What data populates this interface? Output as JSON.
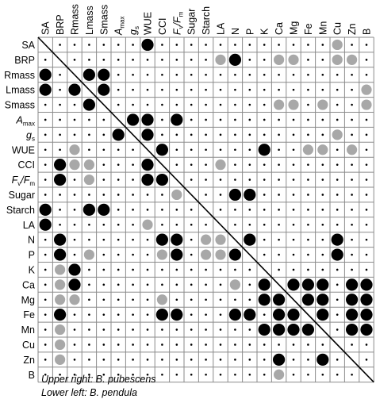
{
  "chart_data": {
    "type": "heatmap",
    "variables": [
      "SA",
      "BRP",
      "Rmass",
      "Lmass",
      "Smass",
      "Amax",
      "gs",
      "WUE",
      "CCI",
      "Fv/Fm",
      "Sugar",
      "Starch",
      "LA",
      "N",
      "P",
      "K",
      "Ca",
      "Mg",
      "Fe",
      "Mn",
      "Cu",
      "Zn",
      "B"
    ],
    "column_labels": [
      {
        "main": "SA",
        "sub": ""
      },
      {
        "main": "BRP",
        "sub": ""
      },
      {
        "main": "Rmass",
        "sub": ""
      },
      {
        "main": "Lmass",
        "sub": ""
      },
      {
        "main": "Smass",
        "sub": ""
      },
      {
        "main": "A",
        "sub": "max"
      },
      {
        "main": "g",
        "sub": "s"
      },
      {
        "main": "WUE",
        "sub": ""
      },
      {
        "main": "CCI",
        "sub": ""
      },
      {
        "main": "F",
        "sub": "v",
        "tail": "/F",
        "tailsub": "m"
      },
      {
        "main": "Sugar",
        "sub": ""
      },
      {
        "main": "Starch",
        "sub": ""
      },
      {
        "main": "LA",
        "sub": ""
      },
      {
        "main": "N",
        "sub": ""
      },
      {
        "main": "P",
        "sub": ""
      },
      {
        "main": "K",
        "sub": ""
      },
      {
        "main": "Ca",
        "sub": ""
      },
      {
        "main": "Mg",
        "sub": ""
      },
      {
        "main": "Fe",
        "sub": ""
      },
      {
        "main": "Mn",
        "sub": ""
      },
      {
        "main": "Cu",
        "sub": ""
      },
      {
        "main": "Zn",
        "sub": ""
      },
      {
        "main": "B",
        "sub": ""
      }
    ],
    "row_labels": [
      {
        "main": "SA",
        "sub": ""
      },
      {
        "main": "BRP",
        "sub": ""
      },
      {
        "main": "Rmass",
        "sub": ""
      },
      {
        "main": "Lmass",
        "sub": ""
      },
      {
        "main": "Smass",
        "sub": ""
      },
      {
        "main": "A",
        "sub": "max",
        "italic": true
      },
      {
        "main": "g",
        "sub": "s",
        "italic": true
      },
      {
        "main": "WUE",
        "sub": ""
      },
      {
        "main": "CCI",
        "sub": ""
      },
      {
        "main": "F",
        "sub": "v",
        "tail": "/F",
        "tailsub": "m",
        "italic": true
      },
      {
        "main": "Sugar",
        "sub": ""
      },
      {
        "main": "Starch",
        "sub": ""
      },
      {
        "main": "LA",
        "sub": ""
      },
      {
        "main": "N",
        "sub": ""
      },
      {
        "main": "P",
        "sub": ""
      },
      {
        "main": "K",
        "sub": ""
      },
      {
        "main": "Ca",
        "sub": ""
      },
      {
        "main": "Mg",
        "sub": ""
      },
      {
        "main": "Fe",
        "sub": ""
      },
      {
        "main": "Mn",
        "sub": ""
      },
      {
        "main": "Cu",
        "sub": ""
      },
      {
        "main": "Zn",
        "sub": ""
      },
      {
        "main": "B",
        "sub": ""
      }
    ],
    "encoding": {
      "0": "small dot",
      "1": "gray circle",
      "2": "black circle"
    },
    "colors": {
      "dot": "#000000",
      "gray": "#a8a8a8",
      "black": "#000000",
      "grid": "#8a8a8a"
    },
    "cells": [
      [
        0,
        0,
        0,
        0,
        0,
        0,
        0,
        2,
        0,
        0,
        0,
        0,
        0,
        0,
        0,
        0,
        0,
        0,
        0,
        0,
        1,
        0,
        0
      ],
      [
        0,
        0,
        0,
        0,
        0,
        0,
        0,
        0,
        0,
        0,
        0,
        0,
        1,
        2,
        0,
        0,
        1,
        1,
        0,
        0,
        1,
        1,
        0
      ],
      [
        2,
        0,
        0,
        2,
        2,
        0,
        0,
        0,
        0,
        0,
        0,
        0,
        0,
        0,
        0,
        0,
        0,
        0,
        0,
        0,
        0,
        0,
        0
      ],
      [
        2,
        0,
        2,
        0,
        2,
        0,
        0,
        0,
        0,
        0,
        0,
        0,
        0,
        0,
        0,
        0,
        0,
        0,
        0,
        0,
        0,
        0,
        1
      ],
      [
        0,
        0,
        0,
        2,
        0,
        0,
        0,
        0,
        0,
        0,
        0,
        0,
        0,
        0,
        0,
        0,
        1,
        1,
        0,
        1,
        0,
        0,
        1
      ],
      [
        0,
        0,
        0,
        0,
        0,
        0,
        2,
        2,
        0,
        2,
        0,
        0,
        0,
        0,
        0,
        0,
        0,
        0,
        0,
        0,
        0,
        0,
        0
      ],
      [
        0,
        0,
        0,
        0,
        0,
        2,
        0,
        2,
        0,
        0,
        0,
        0,
        0,
        0,
        0,
        0,
        0,
        0,
        0,
        0,
        1,
        0,
        0
      ],
      [
        0,
        0,
        1,
        0,
        0,
        0,
        0,
        0,
        2,
        0,
        0,
        0,
        0,
        0,
        0,
        2,
        0,
        0,
        1,
        1,
        0,
        1,
        0
      ],
      [
        0,
        2,
        1,
        1,
        0,
        0,
        0,
        2,
        0,
        0,
        0,
        0,
        1,
        0,
        0,
        0,
        0,
        0,
        0,
        0,
        0,
        0,
        0
      ],
      [
        0,
        2,
        0,
        1,
        0,
        0,
        0,
        2,
        2,
        0,
        0,
        0,
        0,
        0,
        0,
        0,
        0,
        0,
        0,
        0,
        0,
        0,
        0
      ],
      [
        0,
        0,
        0,
        0,
        0,
        0,
        0,
        0,
        0,
        1,
        0,
        0,
        0,
        2,
        2,
        0,
        0,
        0,
        0,
        0,
        0,
        0,
        0
      ],
      [
        2,
        0,
        0,
        2,
        2,
        0,
        0,
        0,
        0,
        0,
        0,
        0,
        0,
        0,
        0,
        0,
        0,
        0,
        0,
        0,
        0,
        0,
        0
      ],
      [
        2,
        0,
        0,
        0,
        0,
        0,
        0,
        1,
        0,
        0,
        0,
        0,
        0,
        0,
        0,
        0,
        0,
        0,
        0,
        0,
        0,
        0,
        0
      ],
      [
        0,
        2,
        0,
        0,
        0,
        0,
        0,
        0,
        2,
        2,
        0,
        1,
        1,
        0,
        2,
        0,
        0,
        0,
        0,
        0,
        2,
        0,
        0
      ],
      [
        0,
        2,
        0,
        1,
        0,
        0,
        0,
        0,
        1,
        2,
        0,
        1,
        1,
        2,
        0,
        0,
        0,
        0,
        0,
        0,
        2,
        0,
        0
      ],
      [
        0,
        1,
        2,
        0,
        0,
        0,
        0,
        0,
        0,
        0,
        0,
        0,
        0,
        0,
        0,
        0,
        0,
        0,
        0,
        0,
        0,
        0,
        0
      ],
      [
        0,
        1,
        2,
        0,
        0,
        0,
        0,
        0,
        0,
        0,
        0,
        0,
        0,
        1,
        0,
        2,
        0,
        2,
        2,
        2,
        0,
        2,
        2
      ],
      [
        0,
        1,
        1,
        0,
        0,
        0,
        0,
        0,
        1,
        0,
        0,
        0,
        0,
        0,
        0,
        2,
        2,
        0,
        2,
        2,
        0,
        2,
        2
      ],
      [
        0,
        2,
        0,
        0,
        0,
        0,
        0,
        0,
        2,
        2,
        0,
        0,
        0,
        2,
        2,
        0,
        2,
        2,
        0,
        2,
        0,
        2,
        2
      ],
      [
        0,
        1,
        0,
        0,
        0,
        0,
        0,
        0,
        0,
        0,
        0,
        0,
        0,
        0,
        0,
        2,
        2,
        2,
        2,
        0,
        0,
        2,
        2
      ],
      [
        0,
        1,
        0,
        0,
        0,
        0,
        0,
        0,
        0,
        0,
        0,
        0,
        0,
        0,
        0,
        0,
        0,
        0,
        0,
        0,
        0,
        0,
        0
      ],
      [
        0,
        1,
        0,
        0,
        0,
        0,
        0,
        0,
        0,
        0,
        0,
        0,
        0,
        0,
        0,
        0,
        2,
        0,
        0,
        2,
        0,
        0,
        0
      ],
      [
        0,
        0,
        0,
        0,
        0,
        0,
        0,
        0,
        0,
        0,
        0,
        0,
        0,
        0,
        0,
        0,
        1,
        0,
        0,
        0,
        0,
        0,
        0
      ]
    ],
    "diagonal_line": true,
    "caption": [
      {
        "prefix": "Upper right:",
        "species": "B. pubescens"
      },
      {
        "prefix": "Lower left:",
        "species": "B. pendula"
      }
    ]
  }
}
